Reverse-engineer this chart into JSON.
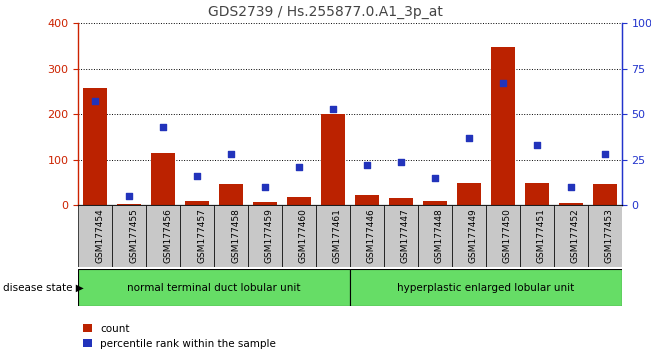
{
  "title": "GDS2739 / Hs.255877.0.A1_3p_at",
  "samples": [
    "GSM177454",
    "GSM177455",
    "GSM177456",
    "GSM177457",
    "GSM177458",
    "GSM177459",
    "GSM177460",
    "GSM177461",
    "GSM177446",
    "GSM177447",
    "GSM177448",
    "GSM177449",
    "GSM177450",
    "GSM177451",
    "GSM177452",
    "GSM177453"
  ],
  "counts": [
    258,
    2,
    115,
    10,
    47,
    8,
    18,
    200,
    22,
    17,
    10,
    50,
    347,
    50,
    5,
    47
  ],
  "percentiles": [
    57,
    5,
    43,
    16,
    28,
    10,
    21,
    53,
    22,
    24,
    15,
    37,
    67,
    33,
    10,
    28
  ],
  "ylim_left": [
    0,
    400
  ],
  "ylim_right": [
    0,
    100
  ],
  "yticks_left": [
    0,
    100,
    200,
    300,
    400
  ],
  "yticks_right": [
    0,
    25,
    50,
    75,
    100
  ],
  "bar_color": "#bb2200",
  "dot_color": "#2233bb",
  "group1_label": "normal terminal duct lobular unit",
  "group2_label": "hyperplastic enlarged lobular unit",
  "group1_count": 8,
  "group2_count": 8,
  "legend_count_label": "count",
  "legend_pct_label": "percentile rank within the sample",
  "disease_state_label": "disease state",
  "group_bg_color": "#66dd66",
  "xlabel_bg_color": "#c8c8c8",
  "title_color": "#444444",
  "left_axis_color": "#cc2200",
  "right_axis_color": "#2233cc",
  "grid_color": "#000000",
  "figure_bg": "#ffffff"
}
